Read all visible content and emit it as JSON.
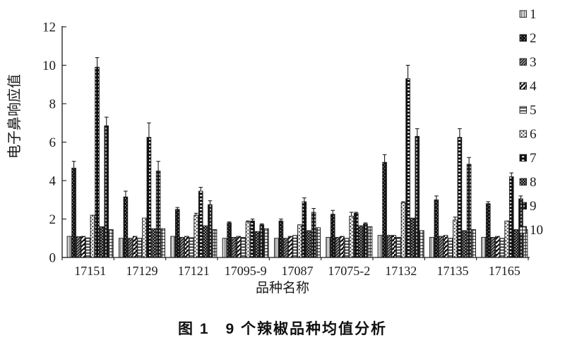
{
  "figure": {
    "caption": "图 1　9 个辣椒品种均值分析"
  },
  "chart_data": {
    "type": "bar",
    "title": "",
    "xlabel": "品种名称",
    "ylabel": "电子鼻响应值",
    "ylim": [
      0,
      12
    ],
    "yticks": [
      0,
      2,
      4,
      6,
      8,
      10,
      12
    ],
    "grid": false,
    "legend_position": "right",
    "legend_labels": [
      "1",
      "2",
      "3",
      "4",
      "5",
      "6",
      "7",
      "8",
      "9",
      "10"
    ],
    "categories": [
      "17151",
      "17129",
      "17121",
      "17095-9",
      "17087",
      "17075-2",
      "17132",
      "17135",
      "17165"
    ],
    "series": [
      {
        "name": "1",
        "pattern": "light-gray-vertical",
        "values": [
          1.1,
          1.0,
          1.1,
          1.0,
          1.0,
          1.05,
          1.15,
          1.05,
          1.05
        ],
        "errors": [
          0,
          0,
          0,
          0,
          0,
          0,
          0,
          0,
          0
        ]
      },
      {
        "name": "2",
        "pattern": "black-white-speckle",
        "values": [
          4.65,
          3.15,
          2.5,
          1.8,
          1.9,
          2.25,
          4.95,
          3.0,
          2.8
        ],
        "errors": [
          0.35,
          0.3,
          0.1,
          0.05,
          0.1,
          0.2,
          0.4,
          0.2,
          0.1
        ]
      },
      {
        "name": "3",
        "pattern": "dark-diagonal-hatch",
        "values": [
          1.08,
          1.0,
          1.05,
          1.05,
          1.0,
          1.05,
          1.15,
          1.1,
          1.05
        ],
        "errors": [
          0,
          0,
          0,
          0,
          0,
          0,
          0,
          0,
          0
        ]
      },
      {
        "name": "4",
        "pattern": "black-diagonal-stripe",
        "values": [
          1.1,
          1.1,
          1.1,
          1.1,
          1.1,
          1.1,
          1.15,
          1.15,
          1.1
        ],
        "errors": [
          0,
          0,
          0,
          0,
          0,
          0,
          0,
          0,
          0
        ]
      },
      {
        "name": "5",
        "pattern": "horizontal-lines",
        "values": [
          1.02,
          1.0,
          1.03,
          1.05,
          1.15,
          1.0,
          1.05,
          1.0,
          1.0
        ],
        "errors": [
          0,
          0,
          0,
          0,
          0,
          0,
          0,
          0,
          0
        ]
      },
      {
        "name": "6",
        "pattern": "dot-speckle",
        "values": [
          2.2,
          2.05,
          2.2,
          1.85,
          1.7,
          2.15,
          2.85,
          1.95,
          1.9
        ],
        "errors": [
          0,
          0,
          0.1,
          0.05,
          0,
          0.2,
          0.05,
          0.15,
          0
        ]
      },
      {
        "name": "7",
        "pattern": "black-white-dash-rows",
        "values": [
          9.9,
          6.25,
          3.45,
          1.9,
          2.9,
          2.3,
          9.3,
          6.25,
          4.2
        ],
        "errors": [
          0.5,
          0.75,
          0.2,
          0.1,
          0.2,
          0.05,
          0.7,
          0.45,
          0.2
        ]
      },
      {
        "name": "8",
        "pattern": "black-white-checker",
        "values": [
          1.6,
          1.5,
          1.65,
          1.35,
          1.4,
          1.65,
          2.05,
          1.4,
          1.45
        ],
        "errors": [
          0,
          0,
          0,
          0,
          0,
          0,
          0,
          0,
          0
        ]
      },
      {
        "name": "9",
        "pattern": "black-white-vertical-dash",
        "values": [
          6.85,
          4.5,
          2.75,
          1.7,
          2.35,
          1.75,
          6.3,
          4.85,
          3.05
        ],
        "errors": [
          0.45,
          0.5,
          0.2,
          0.05,
          0.2,
          0.05,
          0.4,
          0.35,
          0.15
        ]
      },
      {
        "name": "10",
        "pattern": "grid-lattice",
        "values": [
          1.45,
          1.5,
          1.45,
          1.5,
          1.55,
          1.6,
          1.4,
          1.45,
          1.45
        ],
        "errors": [
          0,
          0,
          0,
          0,
          0,
          0,
          0,
          0,
          0
        ]
      }
    ],
    "colors": {
      "ink": "#1a1a1a",
      "background": "#ffffff",
      "bar1_gray": "#b5b5b5"
    }
  }
}
